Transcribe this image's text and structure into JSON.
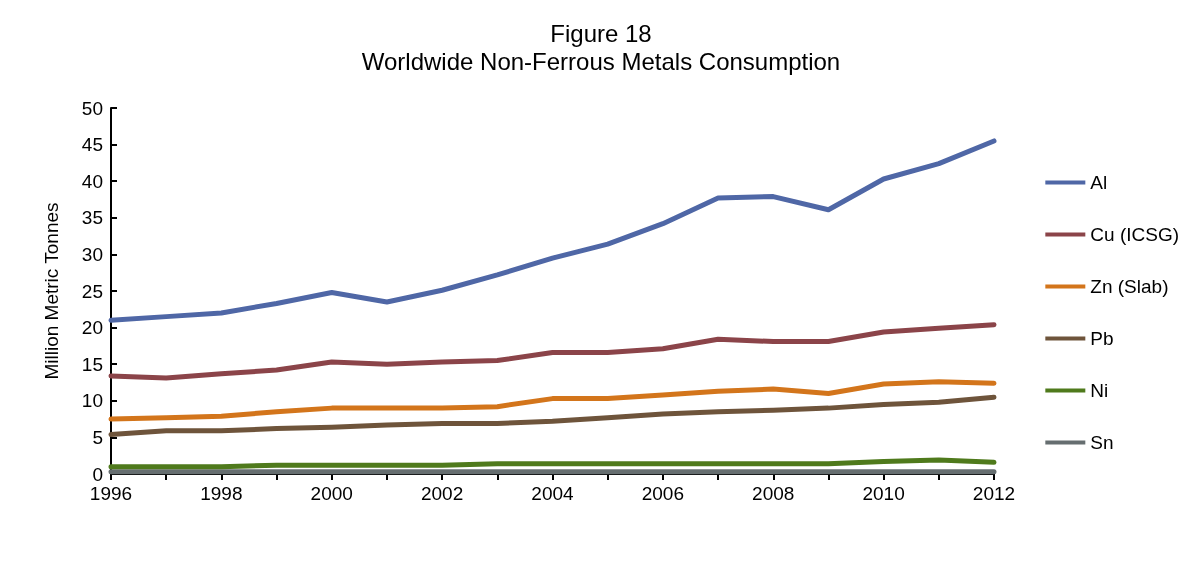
{
  "chart_data": {
    "type": "line",
    "title": "Figure 18",
    "subtitle": "Worldwide Non-Ferrous Metals Consumption",
    "ylabel": "Million Metric Tonnes",
    "x": [
      1996,
      1997,
      1998,
      1999,
      2000,
      2001,
      2002,
      2003,
      2004,
      2005,
      2006,
      2007,
      2008,
      2009,
      2010,
      2011,
      2012
    ],
    "xlim": [
      1996,
      2012
    ],
    "xticks": [
      1996,
      {
        "value": 1997,
        "label": null
      },
      1998,
      {
        "value": 1999,
        "label": null
      },
      2000,
      {
        "value": 2001,
        "label": null
      },
      2002,
      {
        "value": 2003,
        "label": null
      },
      2004,
      {
        "value": 2005,
        "label": null
      },
      2006,
      {
        "value": 2007,
        "label": null
      },
      2008,
      {
        "value": 2009,
        "label": null
      },
      2010,
      {
        "value": 2011,
        "label": null
      },
      2012
    ],
    "ylim": [
      0,
      50
    ],
    "yticks": [
      0,
      5,
      10,
      15,
      20,
      25,
      30,
      35,
      40,
      45,
      50
    ],
    "series": [
      {
        "name": "Al",
        "color": "#4f67a6",
        "values": [
          21,
          21.5,
          22,
          23.3,
          24.8,
          23.5,
          25.1,
          27.2,
          29.5,
          31.4,
          34.2,
          37.7,
          37.9,
          36.1,
          40.3,
          42.4,
          45.5
        ]
      },
      {
        "name": "Cu (ICSG)",
        "color": "#8b4449",
        "values": [
          13.4,
          13.1,
          13.7,
          14.2,
          15.3,
          15,
          15.3,
          15.5,
          16.6,
          16.6,
          17.1,
          18.4,
          18.1,
          18.1,
          19.4,
          19.9,
          20.4
        ]
      },
      {
        "name": "Zn (Slab)",
        "color": "#d3751b",
        "values": [
          7.5,
          7.7,
          7.9,
          8.5,
          9,
          9,
          9,
          9.2,
          10.3,
          10.3,
          10.8,
          11.3,
          11.6,
          11,
          12.3,
          12.6,
          12.4
        ]
      },
      {
        "name": "Pb",
        "color": "#6e543b",
        "values": [
          5.4,
          5.9,
          5.9,
          6.2,
          6.4,
          6.7,
          6.9,
          6.9,
          7.2,
          7.7,
          8.2,
          8.5,
          8.7,
          9,
          9.5,
          9.8,
          10.5
        ]
      },
      {
        "name": "Ni",
        "color": "#4f7a1c",
        "values": [
          1,
          1,
          1,
          1.2,
          1.2,
          1.2,
          1.2,
          1.4,
          1.4,
          1.4,
          1.4,
          1.4,
          1.4,
          1.4,
          1.7,
          1.9,
          1.6
        ]
      },
      {
        "name": "Sn",
        "color": "#666e70",
        "values": [
          0.3,
          0.3,
          0.3,
          0.3,
          0.3,
          0.3,
          0.3,
          0.3,
          0.3,
          0.3,
          0.3,
          0.3,
          0.3,
          0.3,
          0.3,
          0.3,
          0.3
        ]
      }
    ],
    "grid": false,
    "legend": "right",
    "marker": "none",
    "line_style": "solid"
  }
}
